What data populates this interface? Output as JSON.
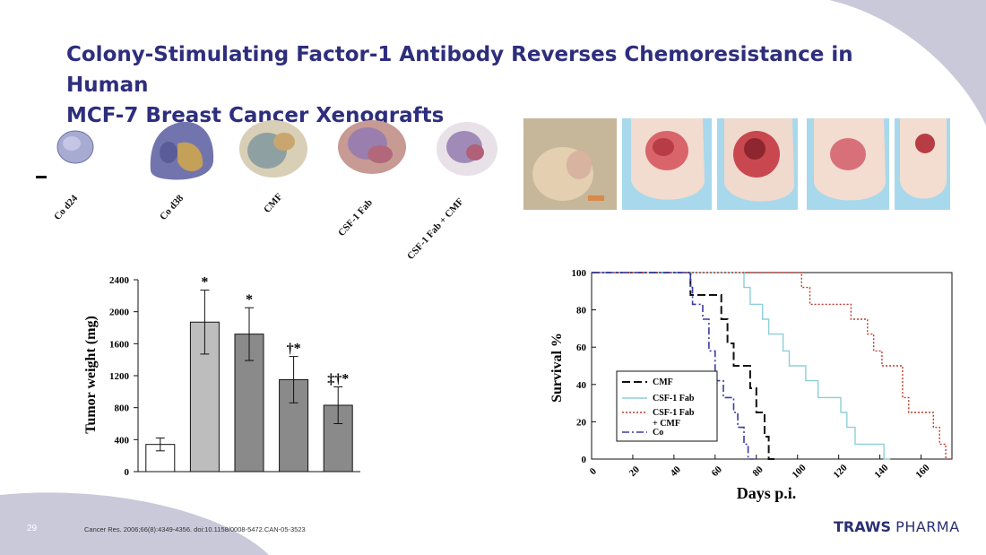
{
  "slide": {
    "title_line1": "Colony-Stimulating Factor-1 Antibody Reverses Chemoresistance in Human",
    "title_line2": "MCF-7 Breast Cancer Xenografts",
    "page_number": "29",
    "citation": "Cancer Res. 2006;66(8):4349-4356. doi:10.1158/0008-5472.CAN-05-3523",
    "logo_word1": "TRAWS",
    "logo_word2": "PHARMA",
    "colors": {
      "title": "#2e2e7e",
      "deco": "#c9c9da",
      "logo": "#2b2f73"
    }
  },
  "histology_labels": [
    "Co d24",
    "Co d38",
    "CMF",
    "CSF-1 Fab",
    "CSF-1 Fab + CMF"
  ],
  "chart_data": [
    {
      "type": "bar",
      "ylabel": "Tumor weight (mg)",
      "xlabel": "",
      "ylim": [
        0,
        2400
      ],
      "yticks": [
        "0",
        "400",
        "800",
        "1200",
        "1600",
        "2000",
        "2400"
      ],
      "categories": [
        "Co d24",
        "Co d38",
        "CMF",
        "CSF-1 Fab",
        "CSF-1 Fab + CMF"
      ],
      "values": [
        340,
        1870,
        1720,
        1150,
        830
      ],
      "errors": [
        80,
        400,
        330,
        290,
        230
      ],
      "significance": [
        "",
        "*",
        "*",
        "†*",
        "‡†*"
      ],
      "fills": [
        "#ffffff",
        "#bdbdbd",
        "#8a8a8a",
        "#8a8a8a",
        "#8a8a8a"
      ]
    },
    {
      "type": "line",
      "xlabel": "Days p.i.",
      "ylabel": "Survival %",
      "xlim": [
        0,
        175
      ],
      "ylim": [
        0,
        100
      ],
      "xticks": [
        "0",
        "20",
        "40",
        "60",
        "80",
        "100",
        "120",
        "140",
        "160"
      ],
      "yticks": [
        "0",
        "20",
        "40",
        "60",
        "80",
        "100"
      ],
      "series": [
        {
          "name": "CMF",
          "color": "#111111",
          "dash": "9,4",
          "width": 2,
          "points": [
            [
              0,
              100
            ],
            [
              48,
              100
            ],
            [
              48,
              88
            ],
            [
              63,
              88
            ],
            [
              63,
              75
            ],
            [
              66,
              75
            ],
            [
              66,
              62
            ],
            [
              69,
              62
            ],
            [
              69,
              50
            ],
            [
              77,
              50
            ],
            [
              77,
              38
            ],
            [
              80,
              38
            ],
            [
              80,
              25
            ],
            [
              84,
              25
            ],
            [
              84,
              12
            ],
            [
              86,
              12
            ],
            [
              86,
              0
            ],
            [
              89,
              0
            ]
          ]
        },
        {
          "name": "CSF-1 Fab",
          "color": "#8ccfd8",
          "dash": "",
          "width": 1.4,
          "points": [
            [
              0,
              100
            ],
            [
              74,
              100
            ],
            [
              74,
              92
            ],
            [
              77,
              92
            ],
            [
              77,
              83
            ],
            [
              83,
              83
            ],
            [
              83,
              75
            ],
            [
              86,
              75
            ],
            [
              86,
              67
            ],
            [
              93,
              67
            ],
            [
              93,
              58
            ],
            [
              96,
              58
            ],
            [
              96,
              50
            ],
            [
              104,
              50
            ],
            [
              104,
              42
            ],
            [
              110,
              42
            ],
            [
              110,
              33
            ],
            [
              121,
              33
            ],
            [
              121,
              25
            ],
            [
              124,
              25
            ],
            [
              124,
              17
            ],
            [
              128,
              17
            ],
            [
              128,
              8
            ],
            [
              142,
              8
            ],
            [
              142,
              0
            ],
            [
              145,
              0
            ]
          ]
        },
        {
          "name": "CSF-1 Fab + CMF",
          "color": "#c0392b",
          "dash": "2,2",
          "width": 1.4,
          "points": [
            [
              0,
              100
            ],
            [
              102,
              100
            ],
            [
              102,
              92
            ],
            [
              106,
              92
            ],
            [
              106,
              83
            ],
            [
              126,
              83
            ],
            [
              126,
              75
            ],
            [
              134,
              75
            ],
            [
              134,
              67
            ],
            [
              137,
              67
            ],
            [
              137,
              58
            ],
            [
              141,
              58
            ],
            [
              141,
              50
            ],
            [
              151,
              50
            ],
            [
              151,
              33
            ],
            [
              154,
              33
            ],
            [
              154,
              25
            ],
            [
              166,
              25
            ],
            [
              166,
              17
            ],
            [
              169,
              17
            ],
            [
              169,
              8
            ],
            [
              172,
              8
            ],
            [
              172,
              0
            ],
            [
              175,
              0
            ]
          ]
        },
        {
          "name": "Co",
          "color": "#3a3aa8",
          "dash": "8,3,2,3",
          "width": 1.6,
          "points": [
            [
              0,
              100
            ],
            [
              48,
              100
            ],
            [
              48,
              92
            ],
            [
              49,
              92
            ],
            [
              49,
              83
            ],
            [
              54,
              83
            ],
            [
              54,
              75
            ],
            [
              57,
              75
            ],
            [
              57,
              58
            ],
            [
              60,
              58
            ],
            [
              60,
              42
            ],
            [
              64,
              42
            ],
            [
              64,
              33
            ],
            [
              69,
              33
            ],
            [
              69,
              25
            ],
            [
              71,
              25
            ],
            [
              71,
              17
            ],
            [
              74,
              17
            ],
            [
              74,
              8
            ],
            [
              76,
              8
            ],
            [
              76,
              0
            ],
            [
              79,
              0
            ]
          ]
        }
      ]
    }
  ]
}
